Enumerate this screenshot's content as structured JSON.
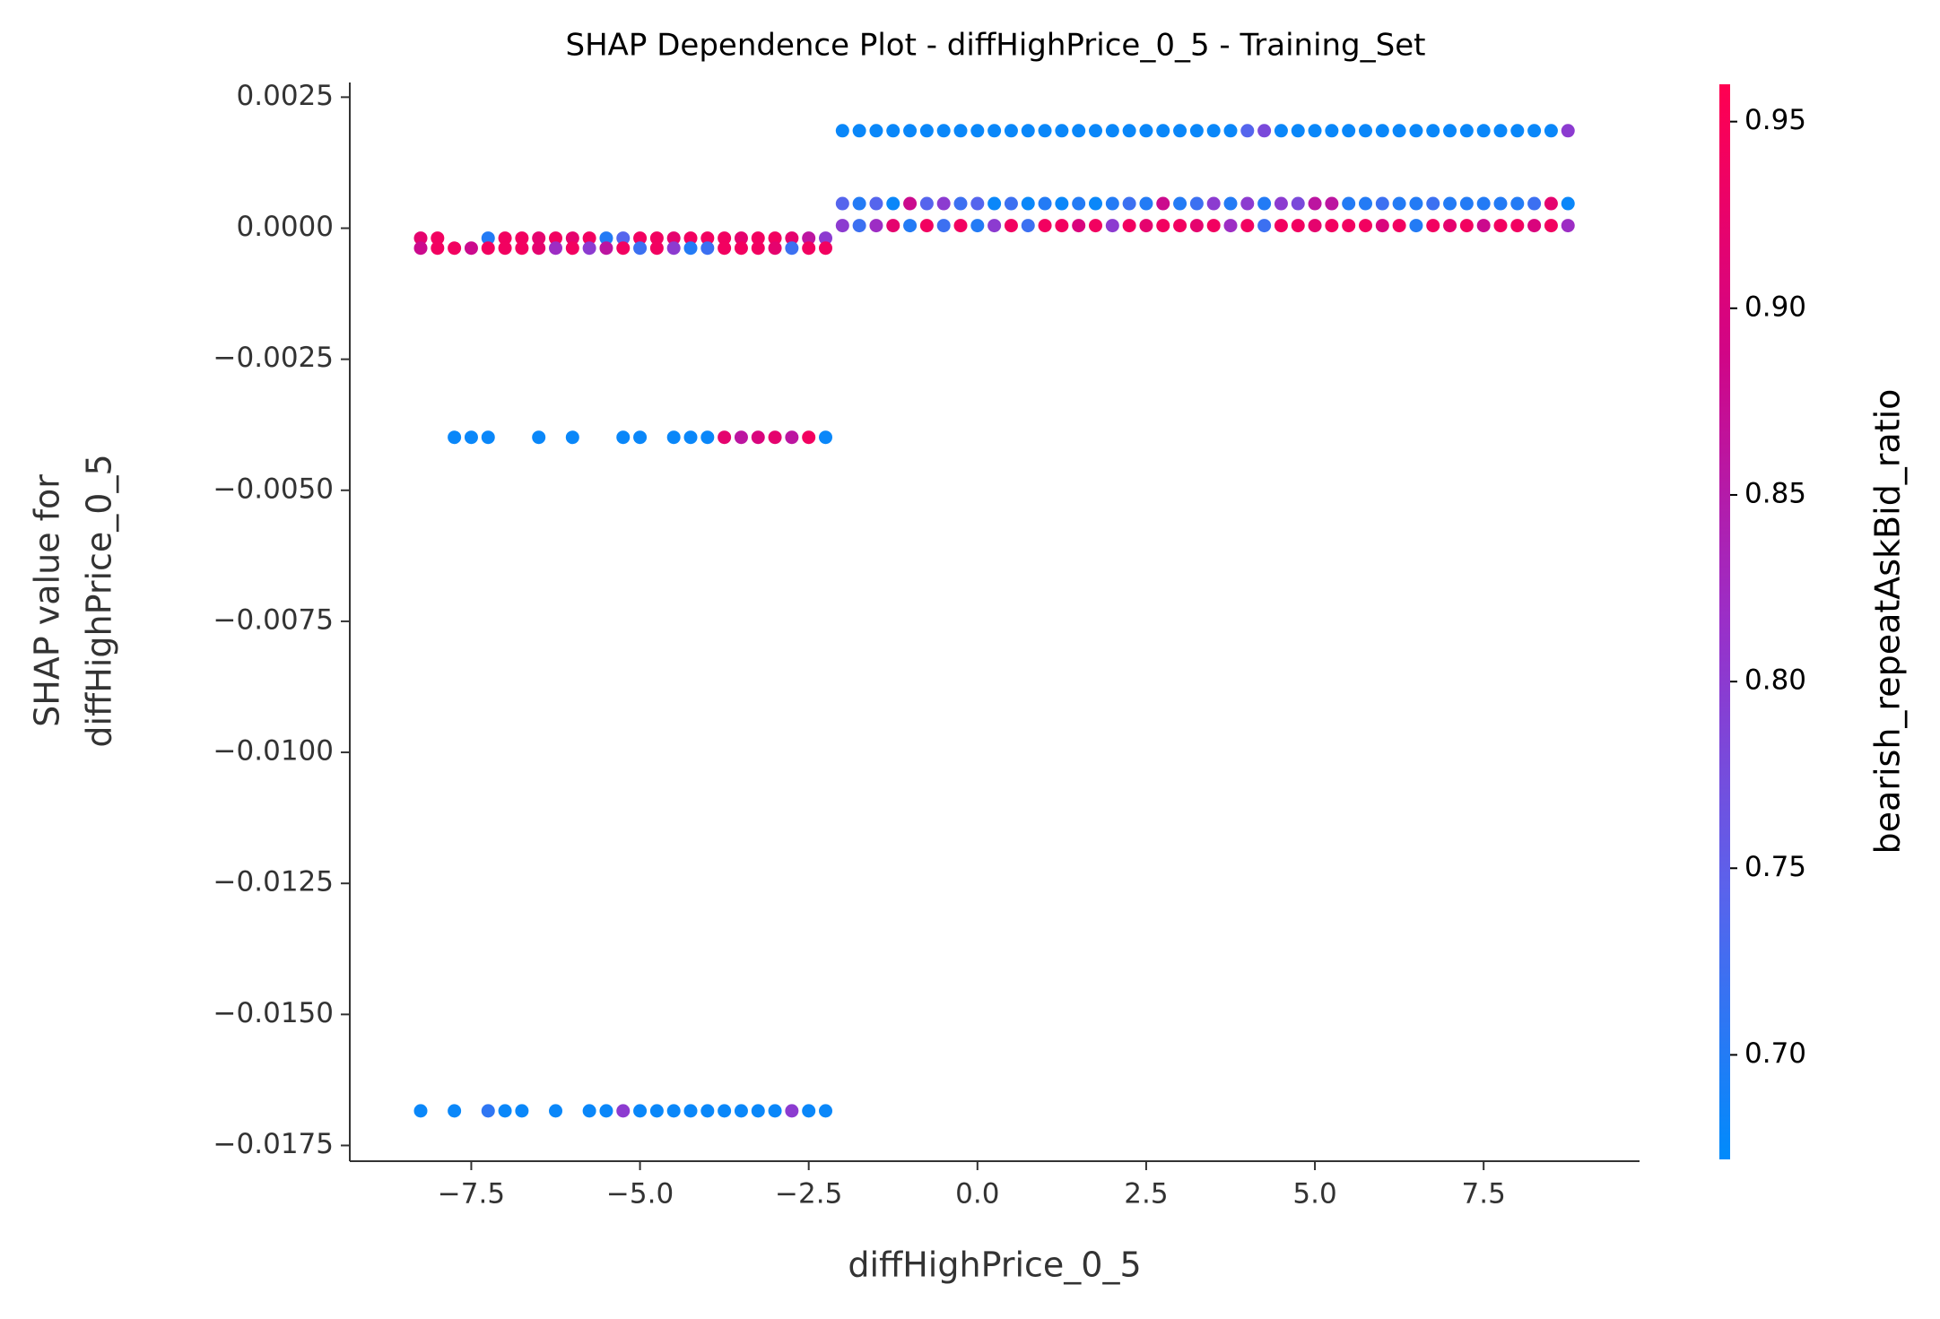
{
  "chart_data": {
    "type": "scatter",
    "title": "SHAP Dependence Plot - diffHighPrice_0_5 - Training_Set",
    "x_label": "diffHighPrice_0_5",
    "y_label": [
      "SHAP value for",
      "diffHighPrice_0_5"
    ],
    "colorbar_label": "bearish_repeatAskBid_ratio",
    "colormap": [
      "#008bfb",
      "#5a63ec",
      "#9a2fc8",
      "#d10586",
      "#ff0051"
    ],
    "clim": [
      0.672,
      0.96
    ],
    "cticks": [
      0.95,
      {
        "value": 0.9,
        "label": "0.90"
      },
      0.85,
      {
        "value": 0.8,
        "label": "0.80"
      },
      0.75,
      {
        "value": 0.7,
        "label": "0.70"
      }
    ],
    "xlim": [
      -9.3,
      9.81
    ],
    "xticks": [
      {
        "value": -7.5,
        "label": "−7.5"
      },
      {
        "value": -5,
        "label": "−5.0"
      },
      {
        "value": -2.5,
        "label": "−2.5"
      },
      {
        "value": 0,
        "label": "0.0"
      },
      2.5,
      {
        "value": 5,
        "label": "5.0"
      },
      7.5
    ],
    "ylim": [
      -0.0178,
      0.00278
    ],
    "yticks": [
      0.0025,
      {
        "value": 0,
        "label": "0.0000"
      },
      {
        "value": -0.0025,
        "label": "−0.0025"
      },
      {
        "value": -0.005,
        "label": "−0.0050"
      },
      {
        "value": -0.0075,
        "label": "−0.0075"
      },
      {
        "value": -0.01,
        "label": "−0.0100"
      },
      {
        "value": -0.0125,
        "label": "−0.0125"
      },
      {
        "value": -0.015,
        "label": "−0.0150"
      },
      {
        "value": -0.0175,
        "label": "−0.0175"
      }
    ],
    "x": [
      -2,
      -1.75,
      -1.5,
      -1.25,
      -1,
      -0.75,
      -0.5,
      -0.25,
      0,
      0.25,
      0.5,
      0.75,
      1,
      1.25,
      1.5,
      1.75,
      2,
      2.25,
      2.5,
      2.75,
      3,
      3.25,
      3.5,
      3.75,
      4,
      4.25,
      4.5,
      4.75,
      5,
      5.25,
      5.5,
      5.75,
      6,
      6.25,
      6.5,
      6.75,
      7,
      7.25,
      7.5,
      7.75,
      8,
      8.25,
      8.5,
      8.75,
      -2,
      -1.75,
      -1.5,
      -1.25,
      -1,
      -0.75,
      -0.5,
      -0.25,
      0,
      0.25,
      0.5,
      0.75,
      1,
      1.25,
      1.5,
      1.75,
      2,
      2.25,
      2.5,
      2.75,
      3,
      3.25,
      3.5,
      3.75,
      4,
      4.25,
      4.5,
      4.75,
      5,
      5.25,
      5.5,
      5.75,
      6,
      6.25,
      6.5,
      6.75,
      7,
      7.25,
      7.5,
      7.75,
      8,
      8.25,
      8.5,
      8.75,
      -2,
      -1.75,
      -1.5,
      -1.25,
      -1,
      -0.75,
      -0.5,
      -0.25,
      0,
      0.25,
      0.5,
      0.75,
      1,
      1.25,
      1.5,
      1.75,
      2,
      2.25,
      2.5,
      2.75,
      3,
      3.25,
      3.5,
      3.75,
      4,
      4.25,
      4.5,
      4.75,
      5,
      5.25,
      5.5,
      5.75,
      6,
      6.25,
      6.5,
      6.75,
      7,
      7.25,
      7.5,
      7.75,
      8,
      8.25,
      8.5,
      8.75,
      -8.25,
      -8,
      -7.25,
      -7,
      -6.75,
      -6.5,
      -6.25,
      -6,
      -5.75,
      -5.5,
      -5.25,
      -5,
      -4.75,
      -4.5,
      -4.25,
      -4,
      -3.75,
      -3.5,
      -3.25,
      -3,
      -2.75,
      -2.5,
      -2.25,
      -8.25,
      -8,
      -7.75,
      -7.5,
      -7.25,
      -7,
      -6.75,
      -6.5,
      -6.25,
      -6,
      -5.75,
      -5.5,
      -5.25,
      -5,
      -4.75,
      -4.5,
      -4.25,
      -4,
      -3.75,
      -3.5,
      -3.25,
      -3,
      -2.75,
      -2.5,
      -2.25,
      -7.75,
      -7.5,
      -7.25,
      -6.5,
      -6,
      -5.25,
      -5,
      -4.5,
      -4.25,
      -4,
      -3.75,
      -3.5,
      -3.25,
      -3,
      -2.75,
      -2.5,
      -2.25,
      -8.25,
      -7.75,
      -7.25,
      -7,
      -6.75,
      -6.25,
      -5.75,
      -5.5,
      -5.25,
      -5,
      -4.75,
      -4.5,
      -4.25,
      -4,
      -3.75,
      -3.5,
      -3.25,
      -3,
      -2.75,
      -2.5,
      -2.25
    ],
    "values": [
      0.00186,
      0.00186,
      0.00186,
      0.00186,
      0.00186,
      0.00186,
      0.00186,
      0.00186,
      0.00186,
      0.00186,
      0.00186,
      0.00186,
      0.00186,
      0.00186,
      0.00186,
      0.00186,
      0.00186,
      0.00186,
      0.00186,
      0.00186,
      0.00186,
      0.00186,
      0.00186,
      0.00186,
      0.00186,
      0.00186,
      0.00186,
      0.00186,
      0.00186,
      0.00186,
      0.00186,
      0.00186,
      0.00186,
      0.00186,
      0.00186,
      0.00186,
      0.00186,
      0.00186,
      0.00186,
      0.00186,
      0.00186,
      0.00186,
      0.00186,
      0.00186,
      0.00047,
      0.00047,
      0.00047,
      0.00047,
      0.00047,
      0.00047,
      0.00047,
      0.00047,
      0.00047,
      0.00047,
      0.00047,
      0.00047,
      0.00047,
      0.00047,
      0.00047,
      0.00047,
      0.00047,
      0.00047,
      0.00047,
      0.00047,
      0.00047,
      0.00047,
      0.00047,
      0.00047,
      0.00047,
      0.00047,
      0.00047,
      0.00047,
      0.00047,
      0.00047,
      0.00047,
      0.00047,
      0.00047,
      0.00047,
      0.00047,
      0.00047,
      0.00047,
      0.00047,
      0.00047,
      0.00047,
      0.00047,
      0.00047,
      0.00047,
      0.00047,
      5e-05,
      5e-05,
      5e-05,
      5e-05,
      5e-05,
      5e-05,
      5e-05,
      5e-05,
      5e-05,
      5e-05,
      5e-05,
      5e-05,
      5e-05,
      5e-05,
      5e-05,
      5e-05,
      5e-05,
      5e-05,
      5e-05,
      5e-05,
      5e-05,
      5e-05,
      5e-05,
      5e-05,
      5e-05,
      5e-05,
      5e-05,
      5e-05,
      5e-05,
      5e-05,
      5e-05,
      5e-05,
      5e-05,
      5e-05,
      5e-05,
      5e-05,
      5e-05,
      5e-05,
      5e-05,
      5e-05,
      5e-05,
      5e-05,
      5e-05,
      5e-05,
      -0.00019,
      -0.00019,
      -0.00019,
      -0.00019,
      -0.00019,
      -0.00019,
      -0.00019,
      -0.00019,
      -0.00019,
      -0.00019,
      -0.00019,
      -0.00019,
      -0.00019,
      -0.00019,
      -0.00019,
      -0.00019,
      -0.00019,
      -0.00019,
      -0.00019,
      -0.00019,
      -0.00019,
      -0.00019,
      -0.00019,
      -0.00038,
      -0.00038,
      -0.00038,
      -0.00038,
      -0.00038,
      -0.00038,
      -0.00038,
      -0.00038,
      -0.00038,
      -0.00038,
      -0.00038,
      -0.00038,
      -0.00038,
      -0.00038,
      -0.00038,
      -0.00038,
      -0.00038,
      -0.00038,
      -0.00038,
      -0.00038,
      -0.00038,
      -0.00038,
      -0.00038,
      -0.00038,
      -0.00038,
      -0.00399,
      -0.00399,
      -0.00399,
      -0.00399,
      -0.00399,
      -0.00399,
      -0.00399,
      -0.00399,
      -0.00399,
      -0.00399,
      -0.00399,
      -0.00399,
      -0.00399,
      -0.00399,
      -0.00399,
      -0.00399,
      -0.00399,
      -0.01684,
      -0.01684,
      -0.01684,
      -0.01684,
      -0.01684,
      -0.01684,
      -0.01684,
      -0.01684,
      -0.01684,
      -0.01684,
      -0.01684,
      -0.01684,
      -0.01684,
      -0.01684,
      -0.01684,
      -0.01684,
      -0.01684,
      -0.01684,
      -0.01684,
      -0.01684,
      -0.01684
    ],
    "color_values": [
      0.68,
      0.68,
      0.68,
      0.68,
      0.68,
      0.68,
      0.68,
      0.68,
      0.68,
      0.68,
      0.68,
      0.68,
      0.68,
      0.68,
      0.68,
      0.68,
      0.68,
      0.68,
      0.68,
      0.68,
      0.68,
      0.68,
      0.68,
      0.68,
      0.74,
      0.78,
      0.68,
      0.68,
      0.68,
      0.68,
      0.68,
      0.68,
      0.68,
      0.68,
      0.68,
      0.68,
      0.68,
      0.68,
      0.68,
      0.68,
      0.68,
      0.68,
      0.68,
      0.8,
      0.74,
      0.7,
      0.74,
      0.68,
      0.88,
      0.74,
      0.8,
      0.72,
      0.74,
      0.68,
      0.72,
      0.68,
      0.7,
      0.68,
      0.7,
      0.68,
      0.7,
      0.72,
      0.7,
      0.88,
      0.7,
      0.72,
      0.8,
      0.7,
      0.8,
      0.7,
      0.8,
      0.78,
      0.86,
      0.86,
      0.7,
      0.7,
      0.72,
      0.7,
      0.7,
      0.72,
      0.7,
      0.7,
      0.7,
      0.7,
      0.7,
      0.72,
      0.92,
      0.68,
      0.8,
      0.72,
      0.82,
      0.92,
      0.7,
      0.94,
      0.72,
      0.94,
      0.7,
      0.8,
      0.94,
      0.72,
      0.94,
      0.94,
      0.9,
      0.94,
      0.8,
      0.94,
      0.92,
      0.94,
      0.94,
      0.92,
      0.94,
      0.82,
      0.94,
      0.72,
      0.94,
      0.94,
      0.92,
      0.94,
      0.94,
      0.94,
      0.9,
      0.94,
      0.7,
      0.94,
      0.92,
      0.94,
      0.88,
      0.94,
      0.94,
      0.9,
      0.94,
      0.82,
      0.92,
      0.94,
      0.7,
      0.94,
      0.94,
      0.92,
      0.94,
      0.92,
      0.94,
      0.7,
      0.74,
      0.94,
      0.94,
      0.92,
      0.94,
      0.94,
      0.94,
      0.92,
      0.94,
      0.94,
      0.92,
      0.86,
      0.8,
      0.88,
      0.94,
      0.94,
      0.88,
      0.94,
      0.94,
      0.94,
      0.92,
      0.82,
      0.94,
      0.8,
      0.86,
      0.94,
      0.72,
      0.94,
      0.8,
      0.7,
      0.72,
      0.94,
      0.94,
      0.94,
      0.92,
      0.72,
      0.94,
      0.94,
      0.68,
      0.68,
      0.68,
      0.68,
      0.68,
      0.68,
      0.68,
      0.68,
      0.68,
      0.68,
      0.92,
      0.86,
      0.9,
      0.92,
      0.86,
      0.94,
      0.68,
      0.68,
      0.68,
      0.71,
      0.68,
      0.68,
      0.68,
      0.68,
      0.68,
      0.8,
      0.68,
      0.68,
      0.68,
      0.68,
      0.68,
      0.68,
      0.68,
      0.68,
      0.68,
      0.8,
      0.68,
      0.68
    ]
  }
}
